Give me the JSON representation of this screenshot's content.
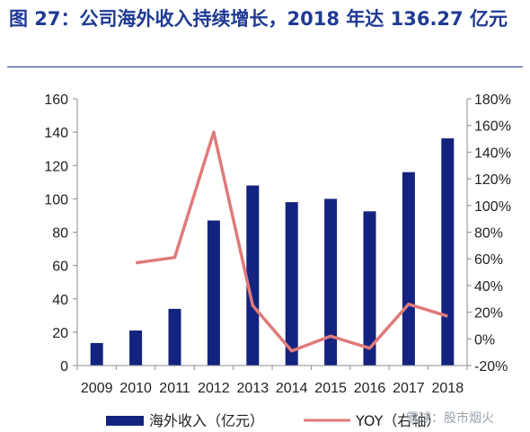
{
  "title": "图 27：公司海外收入持续增长，2018 年达 136.27 亿元",
  "watermark": "雪球：股市烟火",
  "colors": {
    "bar": "#14237f",
    "line": "#e07a7a",
    "title": "#1f3a93",
    "axis": "#8c8c8c"
  },
  "chart_data": {
    "type": "bar",
    "categories": [
      "2009",
      "2010",
      "2011",
      "2012",
      "2013",
      "2014",
      "2015",
      "2016",
      "2017",
      "2018"
    ],
    "series": [
      {
        "name": "海外收入（亿元）",
        "type": "bar",
        "axis": "left",
        "values": [
          13.5,
          21,
          34,
          87,
          108,
          98,
          100,
          92.5,
          116,
          136.27
        ]
      },
      {
        "name": "YOY（右轴）",
        "type": "line",
        "axis": "right",
        "values": [
          null,
          0.57,
          0.61,
          1.55,
          0.25,
          -0.09,
          0.02,
          -0.07,
          0.26,
          0.17
        ]
      }
    ],
    "ylim": [
      0,
      160
    ],
    "yticks": [
      "0",
      "20",
      "40",
      "60",
      "80",
      "100",
      "120",
      "140",
      "160"
    ],
    "y2lim": [
      -0.2,
      1.8
    ],
    "y2ticks": [
      "-20%",
      "0%",
      "20%",
      "40%",
      "60%",
      "80%",
      "100%",
      "120%",
      "140%",
      "160%",
      "180%"
    ],
    "legend": "bottom",
    "grid": false
  }
}
